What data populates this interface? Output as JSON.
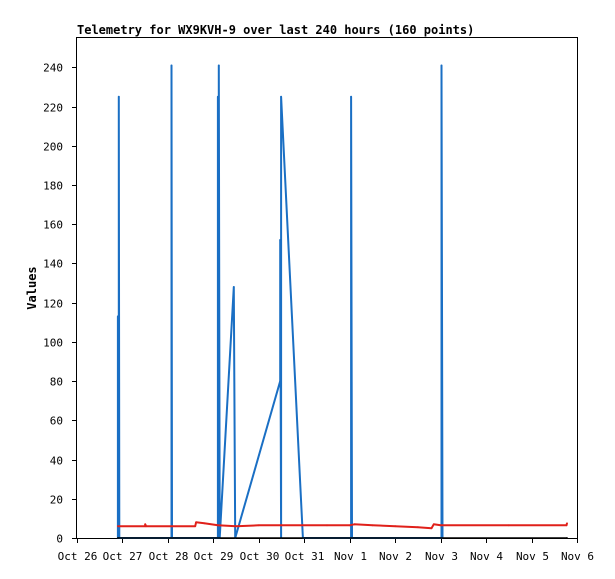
{
  "chart_data": {
    "type": "line",
    "title": "Telemetry for WX9KVH-9 over last 240 hours (160 points)",
    "xlabel": "",
    "ylabel": "Values",
    "x_tick_labels": [
      "Oct 26",
      "Oct 27",
      "Oct 28",
      "Oct 29",
      "Oct 30",
      "Oct 31",
      "Nov 1",
      "Nov 2",
      "Nov 3",
      "Nov 4",
      "Nov 5",
      "Nov 6"
    ],
    "xlim": [
      0,
      11
    ],
    "ylim": [
      0,
      255
    ],
    "y_ticks": [
      0,
      20,
      40,
      60,
      80,
      100,
      120,
      140,
      160,
      180,
      200,
      220,
      240
    ],
    "grid": false,
    "series": [
      {
        "color": "#1a6fc4",
        "points": [
          [
            0.9,
            0
          ],
          [
            0.9,
            113
          ],
          [
            0.92,
            0
          ],
          [
            0.92,
            225
          ],
          [
            0.93,
            0
          ],
          [
            2.08,
            0
          ],
          [
            2.08,
            241
          ],
          [
            2.09,
            0
          ],
          [
            3.1,
            0
          ],
          [
            3.1,
            225
          ],
          [
            3.12,
            0
          ],
          [
            3.12,
            241
          ],
          [
            3.14,
            0
          ],
          [
            3.45,
            128
          ],
          [
            3.48,
            0
          ],
          [
            4.47,
            80
          ],
          [
            4.47,
            152
          ],
          [
            4.49,
            0
          ],
          [
            4.49,
            225
          ],
          [
            4.97,
            0
          ],
          [
            6.03,
            0
          ],
          [
            6.03,
            225
          ],
          [
            6.05,
            0
          ],
          [
            8.02,
            0
          ],
          [
            8.02,
            241
          ],
          [
            8.04,
            0
          ]
        ]
      },
      {
        "color": "#e0201a",
        "points": [
          [
            0.9,
            6
          ],
          [
            1.5,
            6
          ],
          [
            1.5,
            7
          ],
          [
            1.52,
            6
          ],
          [
            2.6,
            6
          ],
          [
            2.62,
            8
          ],
          [
            2.8,
            7.5
          ],
          [
            3.1,
            6.5
          ],
          [
            3.5,
            6
          ],
          [
            4.0,
            6.5
          ],
          [
            4.5,
            6.5
          ],
          [
            5.5,
            6.5
          ],
          [
            6.0,
            6.5
          ],
          [
            6.1,
            7
          ],
          [
            6.5,
            6.5
          ],
          [
            7.0,
            6
          ],
          [
            7.5,
            5.5
          ],
          [
            7.8,
            5
          ],
          [
            7.85,
            7
          ],
          [
            8.0,
            6.5
          ],
          [
            9.5,
            6.5
          ],
          [
            10.77,
            6.5
          ],
          [
            10.78,
            7.5
          ]
        ]
      },
      {
        "color": "#000000",
        "points": [
          [
            0.9,
            0
          ],
          [
            10.78,
            0
          ]
        ]
      }
    ]
  }
}
